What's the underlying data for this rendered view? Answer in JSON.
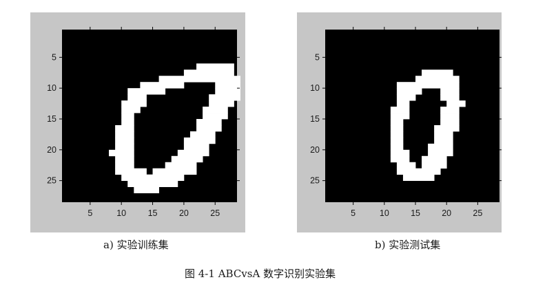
{
  "figures": [
    {
      "id": "a",
      "caption": "a) 实验训练集",
      "x_ticks": [
        "5",
        "10",
        "15",
        "20",
        "25"
      ],
      "y_ticks": [
        "5",
        "10",
        "15",
        "20",
        "25"
      ],
      "image_grid": "28x28",
      "digit": "0",
      "rows": [
        [
          6,
          22,
          27
        ],
        [
          7,
          20,
          27
        ],
        [
          8,
          16,
          28
        ],
        [
          9,
          13,
          19
        ],
        [
          9,
          25,
          28
        ],
        [
          10,
          11,
          16
        ],
        [
          10,
          25,
          28
        ],
        [
          11,
          11,
          13
        ],
        [
          11,
          24,
          28
        ],
        [
          12,
          10,
          13
        ],
        [
          12,
          24,
          27
        ],
        [
          13,
          10,
          12
        ],
        [
          13,
          23,
          26
        ],
        [
          14,
          10,
          11
        ],
        [
          14,
          23,
          26
        ],
        [
          15,
          10,
          11
        ],
        [
          15,
          22,
          25
        ],
        [
          16,
          9,
          11
        ],
        [
          16,
          22,
          25
        ],
        [
          17,
          9,
          11
        ],
        [
          17,
          21,
          24
        ],
        [
          18,
          9,
          11
        ],
        [
          18,
          20,
          24
        ],
        [
          19,
          9,
          11
        ],
        [
          19,
          20,
          23
        ],
        [
          20,
          8,
          11
        ],
        [
          20,
          19,
          23
        ],
        [
          21,
          9,
          11
        ],
        [
          21,
          18,
          22
        ],
        [
          22,
          9,
          11
        ],
        [
          22,
          17,
          21
        ],
        [
          23,
          9,
          13
        ],
        [
          23,
          15,
          21
        ],
        [
          24,
          10,
          19
        ],
        [
          25,
          11,
          18
        ],
        [
          26,
          12,
          15
        ]
      ]
    },
    {
      "id": "b",
      "caption": "b) 实验测试集",
      "x_ticks": [
        "5",
        "10",
        "15",
        "20",
        "25"
      ],
      "y_ticks": [
        "5",
        "10",
        "15",
        "20",
        "25"
      ],
      "image_grid": "28x28",
      "digit": "0",
      "rows": [
        [
          7,
          16,
          20
        ],
        [
          8,
          15,
          21
        ],
        [
          9,
          12,
          21
        ],
        [
          10,
          12,
          15
        ],
        [
          10,
          19,
          21
        ],
        [
          11,
          12,
          14
        ],
        [
          11,
          19,
          21
        ],
        [
          12,
          12,
          13
        ],
        [
          12,
          20,
          22
        ],
        [
          13,
          11,
          13
        ],
        [
          13,
          19,
          21
        ],
        [
          14,
          11,
          13
        ],
        [
          14,
          19,
          21
        ],
        [
          15,
          11,
          12
        ],
        [
          15,
          19,
          21
        ],
        [
          16,
          11,
          12
        ],
        [
          16,
          18,
          21
        ],
        [
          17,
          11,
          12
        ],
        [
          17,
          18,
          20
        ],
        [
          18,
          11,
          12
        ],
        [
          18,
          18,
          20
        ],
        [
          19,
          11,
          12
        ],
        [
          19,
          17,
          20
        ],
        [
          20,
          11,
          13
        ],
        [
          20,
          17,
          20
        ],
        [
          21,
          11,
          13
        ],
        [
          21,
          16,
          19
        ],
        [
          22,
          12,
          14
        ],
        [
          22,
          16,
          19
        ],
        [
          23,
          12,
          18
        ],
        [
          24,
          13,
          17
        ]
      ]
    }
  ],
  "figure_caption": "图 4-1 ABCvsA 数字识别实验集"
}
